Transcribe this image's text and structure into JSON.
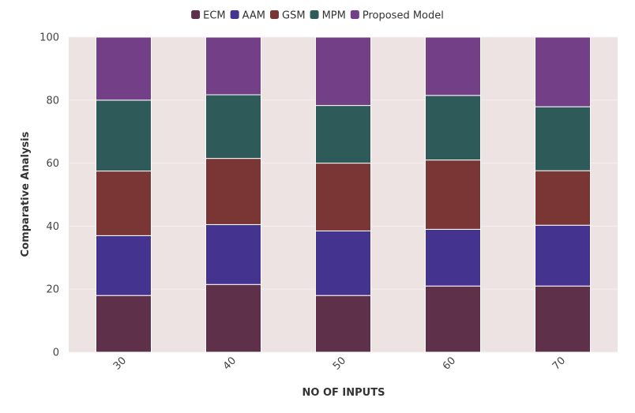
{
  "chart_data": {
    "type": "bar",
    "stacked": true,
    "title": "",
    "xlabel": "NO OF INPUTS",
    "ylabel": "Comparative Analysis",
    "categories": [
      "30",
      "40",
      "50",
      "60",
      "70"
    ],
    "ylim": [
      0,
      100
    ],
    "yticks": [
      0,
      20,
      40,
      60,
      80,
      100
    ],
    "grid": true,
    "legend_position": "top-center",
    "series": [
      {
        "name": "ECM",
        "color": "#5e3049",
        "values": [
          18,
          21.5,
          18,
          21,
          21
        ]
      },
      {
        "name": "AAM",
        "color": "#44338f",
        "values": [
          19,
          19,
          20.5,
          18,
          19.3
        ]
      },
      {
        "name": "GSM",
        "color": "#7a3535",
        "values": [
          20.5,
          21,
          21.5,
          22,
          17.3
        ]
      },
      {
        "name": "MPM",
        "color": "#2e5a5a",
        "values": [
          22.5,
          20.2,
          18.3,
          20.5,
          20.3
        ]
      },
      {
        "name": "Proposed Model",
        "color": "#733f86",
        "values": [
          20,
          18.3,
          21.7,
          18.5,
          22.1
        ]
      }
    ],
    "plot_background": "#ede3e3",
    "grid_color": "#f6f0f0"
  }
}
